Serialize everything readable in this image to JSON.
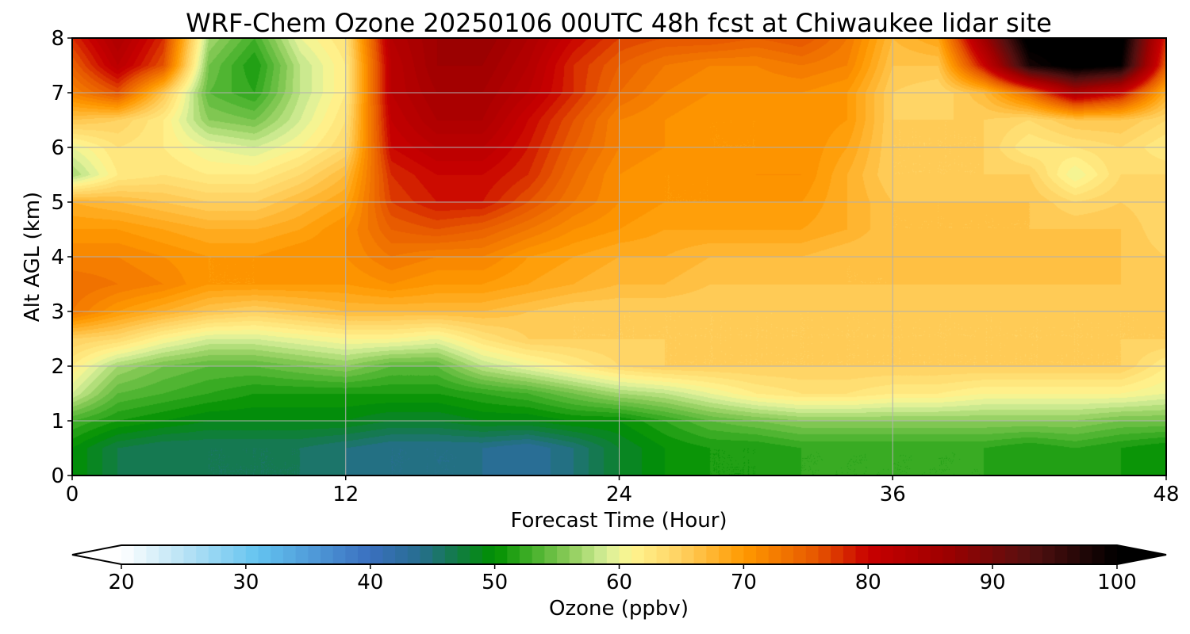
{
  "chart_data": {
    "type": "heatmap",
    "title": "WRF-Chem Ozone  20250106 00UTC 48h fcst at Chiwaukee lidar site",
    "xlabel": "Forecast Time (Hour)",
    "ylabel": "Alt AGL (km)",
    "xlim": [
      0,
      48
    ],
    "ylim": [
      0,
      8
    ],
    "xticks": [
      "0",
      "12",
      "24",
      "36",
      "48"
    ],
    "yticks": [
      "0",
      "1",
      "2",
      "3",
      "4",
      "5",
      "6",
      "7",
      "8"
    ],
    "grid": true,
    "x": [
      0,
      2,
      4,
      6,
      8,
      10,
      12,
      14,
      16,
      18,
      20,
      22,
      24,
      26,
      28,
      30,
      32,
      34,
      36,
      38,
      40,
      42,
      44,
      46,
      48
    ],
    "y": [
      0,
      0.5,
      1,
      1.5,
      2,
      2.5,
      3,
      3.5,
      4,
      4.5,
      5,
      5.5,
      6,
      6.5,
      7,
      7.5,
      8
    ],
    "z": [
      [
        50,
        47,
        47,
        46,
        46,
        46,
        45,
        44,
        44,
        44,
        43,
        45,
        48,
        50,
        51,
        51,
        52,
        52,
        52,
        52,
        52,
        51,
        52,
        51,
        50
      ],
      [
        50,
        47,
        46,
        46,
        46,
        46,
        45,
        44,
        44,
        44,
        43,
        45,
        48,
        50,
        51,
        51,
        52,
        52,
        52,
        52,
        52,
        51,
        52,
        51,
        50
      ],
      [
        53,
        51,
        50,
        49,
        49,
        49,
        49,
        48,
        48,
        49,
        49,
        50,
        50,
        52,
        54,
        55,
        56,
        56,
        56,
        56,
        56,
        56,
        56,
        55,
        55
      ],
      [
        59,
        54,
        53,
        52,
        51,
        51,
        51,
        51,
        51,
        52,
        53,
        55,
        57,
        58,
        60,
        62,
        63,
        63,
        62,
        62,
        61,
        61,
        61,
        61,
        60
      ],
      [
        62,
        57,
        55,
        54,
        54,
        55,
        56,
        54,
        54,
        58,
        60,
        62,
        64,
        65,
        65,
        65,
        65,
        65,
        65,
        65,
        65,
        65,
        65,
        65,
        62
      ],
      [
        65,
        64,
        61,
        59,
        59,
        60,
        61,
        61,
        60,
        63,
        65,
        65,
        65,
        65,
        65,
        65,
        65,
        65,
        65,
        65,
        65,
        65,
        65,
        65,
        65
      ],
      [
        73,
        70,
        68,
        66,
        65,
        66,
        67,
        67,
        67,
        67,
        66,
        65,
        65,
        65,
        65,
        65,
        65,
        65,
        65,
        65,
        65,
        65,
        65,
        65,
        65
      ],
      [
        74,
        73,
        72,
        70,
        70,
        70,
        70,
        71,
        70,
        70,
        69,
        68,
        67,
        67,
        66,
        66,
        66,
        66,
        66,
        66,
        66,
        66,
        66,
        66,
        65
      ],
      [
        72,
        72,
        71,
        70,
        70,
        71,
        71,
        73,
        72,
        72,
        70,
        69,
        68,
        68,
        67,
        67,
        67,
        66,
        66,
        67,
        67,
        67,
        67,
        66,
        65
      ],
      [
        70,
        70,
        69,
        68,
        68,
        69,
        71,
        75,
        76,
        75,
        73,
        71,
        70,
        69,
        69,
        69,
        69,
        68,
        66,
        66,
        66,
        66,
        66,
        66,
        64
      ],
      [
        68,
        67,
        66,
        65,
        65,
        67,
        69,
        77,
        79,
        79,
        76,
        73,
        71,
        70,
        70,
        70,
        70,
        68,
        66,
        66,
        66,
        66,
        64,
        65,
        64
      ],
      [
        57,
        62,
        63,
        62,
        62,
        64,
        67,
        78,
        80,
        80,
        78,
        74,
        71,
        70,
        70,
        71,
        71,
        68,
        65,
        65,
        65,
        65,
        60,
        64,
        64
      ],
      [
        60,
        63,
        62,
        60,
        59,
        61,
        64,
        80,
        82,
        82,
        79,
        75,
        72,
        71,
        70,
        70,
        71,
        69,
        65,
        65,
        65,
        62,
        63,
        64,
        62
      ],
      [
        66,
        65,
        62,
        56,
        55,
        59,
        63,
        81,
        84,
        84,
        80,
        76,
        72,
        71,
        70,
        70,
        71,
        70,
        65,
        65,
        65,
        64,
        66,
        66,
        64
      ],
      [
        72,
        76,
        66,
        54,
        52,
        58,
        62,
        82,
        85,
        85,
        82,
        78,
        74,
        72,
        71,
        71,
        71,
        70,
        65,
        64,
        67,
        74,
        84,
        80,
        68
      ],
      [
        75,
        82,
        76,
        55,
        51,
        58,
        62,
        82,
        86,
        86,
        83,
        78,
        75,
        73,
        72,
        72,
        73,
        72,
        66,
        66,
        80,
        98,
        102,
        100,
        75
      ],
      [
        78,
        84,
        78,
        57,
        53,
        60,
        63,
        83,
        86,
        87,
        84,
        80,
        77,
        76,
        76,
        75,
        76,
        73,
        67,
        69,
        86,
        102,
        102,
        102,
        78
      ]
    ],
    "colorbar": {
      "label": "Ozone  (ppbv)",
      "min": 20,
      "max": 100,
      "ticks": [
        "20",
        "30",
        "40",
        "50",
        "60",
        "70",
        "80",
        "90",
        "100"
      ],
      "extend": "both",
      "stops": [
        {
          "v": 20,
          "c": "#ffffff"
        },
        {
          "v": 25,
          "c": "#b9e3f5"
        },
        {
          "v": 31,
          "c": "#63c3f0"
        },
        {
          "v": 40,
          "c": "#3a6fbf"
        },
        {
          "v": 44,
          "c": "#266e8f"
        },
        {
          "v": 47,
          "c": "#127b44"
        },
        {
          "v": 50,
          "c": "#009000"
        },
        {
          "v": 53,
          "c": "#44b02a"
        },
        {
          "v": 56,
          "c": "#8ccc5a"
        },
        {
          "v": 59,
          "c": "#d8ef99"
        },
        {
          "v": 61,
          "c": "#fff590"
        },
        {
          "v": 65,
          "c": "#ffd060"
        },
        {
          "v": 70,
          "c": "#ff9a00"
        },
        {
          "v": 76,
          "c": "#e65500"
        },
        {
          "v": 80,
          "c": "#c80000"
        },
        {
          "v": 86,
          "c": "#a00000"
        },
        {
          "v": 93,
          "c": "#551010"
        },
        {
          "v": 100,
          "c": "#000000"
        }
      ]
    }
  }
}
